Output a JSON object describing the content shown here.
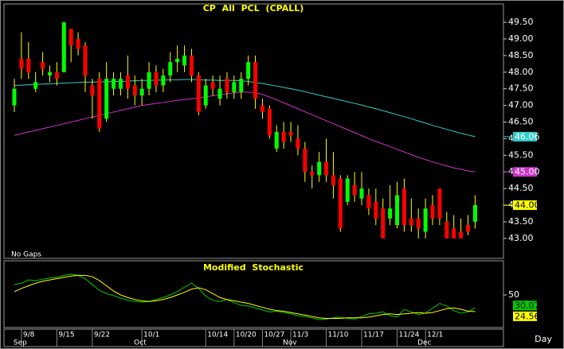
{
  "chart_data": [
    {
      "type": "candlestick",
      "title": "CP All PCL (CPALL)",
      "note": "No Gaps",
      "xlim": [
        -1.46,
        69
      ],
      "xticks": [
        {
          "value": 1,
          "label": "9/8"
        },
        {
          "value": 6,
          "label": "9/15"
        },
        {
          "value": 11,
          "label": "9/22"
        },
        {
          "value": 18,
          "label": "10/1"
        },
        {
          "value": 27,
          "label": "10/14"
        },
        {
          "value": 31,
          "label": "10/20"
        },
        {
          "value": 35,
          "label": "10/27"
        },
        {
          "value": 39,
          "label": "11/3"
        },
        {
          "value": 44,
          "label": "11/10"
        },
        {
          "value": 49,
          "label": "11/17"
        },
        {
          "value": 54,
          "label": "11/24"
        },
        {
          "value": 58,
          "label": "12/1"
        }
      ],
      "months": [
        {
          "value": 1,
          "label": "Sep"
        },
        {
          "value": 18,
          "label": "Oct"
        },
        {
          "value": 39,
          "label": "Nov"
        },
        {
          "value": 58,
          "label": "Dec"
        }
      ],
      "x_label": "Day",
      "ylim": [
        42.4,
        50.05
      ],
      "yticks": [
        {
          "value": 43,
          "label": "43.00"
        },
        {
          "value": 43.5,
          "label": "43.50"
        },
        {
          "value": 44,
          "label": "44.00"
        },
        {
          "value": 44.5,
          "label": "44.50"
        },
        {
          "value": 45,
          "label": "45.00"
        },
        {
          "value": 45.5,
          "label": "45.50"
        },
        {
          "value": 46,
          "label": "46.00"
        },
        {
          "value": 46.5,
          "label": "46.50"
        },
        {
          "value": 47,
          "label": "47.00"
        },
        {
          "value": 47.5,
          "label": "47.50"
        },
        {
          "value": 48,
          "label": "48.00"
        },
        {
          "value": 48.5,
          "label": "48.50"
        },
        {
          "value": 49,
          "label": "49.00"
        },
        {
          "value": 49.5,
          "label": "49.50"
        }
      ],
      "up_color": "#00ff00",
      "down_color": "#ff0000",
      "wick_color": "#ffff00",
      "open": [
        47.0,
        48.4,
        48.4,
        47.5,
        48.3,
        47.9,
        48.0,
        48.0,
        49.3,
        49.0,
        48.8,
        47.6,
        47.8,
        46.6,
        47.5,
        47.5,
        47.9,
        47.6,
        47.3,
        47.5,
        48.0,
        47.6,
        47.9,
        48.3,
        48.2,
        48.5,
        47.9,
        47.0,
        47.7,
        47.2,
        47.8,
        47.4,
        47.4,
        47.8,
        48.3,
        47.0,
        46.9,
        45.7,
        46.2,
        46.2,
        46.0,
        45.7,
        45.0,
        44.9,
        45.3,
        44.9,
        44.8,
        44.1,
        44.6,
        44.2,
        44.3,
        44.1,
        43.9,
        43.6,
        43.4,
        44.5,
        43.6,
        43.6,
        43.2,
        44.0,
        44.5,
        43.5,
        43.3,
        43.2,
        43.4,
        43.5
      ],
      "high": [
        47.8,
        49.2,
        48.9,
        48.0,
        48.6,
        48.2,
        48.3,
        49.5,
        49.3,
        49.2,
        48.9,
        47.8,
        48.0,
        48.3,
        48.0,
        48.0,
        48.5,
        47.9,
        47.8,
        48.3,
        48.2,
        48.1,
        48.6,
        48.8,
        48.8,
        48.7,
        48.0,
        47.8,
        47.9,
        47.9,
        48.0,
        47.9,
        48.0,
        48.5,
        48.5,
        47.2,
        47.0,
        46.4,
        46.5,
        46.5,
        46.4,
        45.9,
        45.2,
        45.6,
        46.0,
        45.6,
        44.9,
        44.9,
        45.0,
        45.0,
        44.5,
        44.5,
        44.2,
        44.6,
        44.7,
        44.8,
        44.2,
        43.9,
        44.2,
        44.3,
        44.5,
        43.8,
        43.7,
        43.6,
        43.7,
        44.3
      ],
      "low": [
        46.8,
        47.8,
        47.8,
        47.4,
        47.9,
        47.7,
        47.6,
        48.0,
        48.3,
        48.5,
        47.4,
        46.6,
        46.2,
        46.5,
        47.3,
        47.3,
        47.2,
        47.0,
        47.0,
        47.3,
        47.4,
        47.4,
        47.7,
        48.0,
        48.0,
        47.7,
        46.7,
        46.9,
        47.3,
        47.0,
        47.2,
        47.2,
        47.2,
        47.6,
        46.9,
        46.6,
        46.0,
        45.6,
        45.7,
        45.9,
        45.5,
        44.7,
        44.5,
        44.7,
        44.7,
        44.2,
        43.2,
        44.0,
        44.1,
        44.0,
        43.7,
        43.4,
        43.0,
        43.4,
        43.3,
        43.2,
        43.2,
        43.0,
        43.0,
        43.4,
        43.4,
        43.0,
        43.0,
        43.0,
        43.1,
        43.3
      ],
      "close": [
        47.5,
        48.1,
        48.0,
        47.7,
        48.1,
        48.0,
        47.8,
        49.5,
        48.8,
        48.7,
        47.9,
        47.3,
        46.3,
        47.8,
        47.8,
        47.8,
        47.5,
        47.3,
        47.5,
        48.0,
        47.6,
        47.9,
        48.3,
        48.4,
        48.5,
        47.9,
        46.8,
        47.6,
        47.5,
        47.5,
        47.4,
        47.7,
        47.8,
        48.3,
        47.2,
        46.8,
        46.1,
        46.2,
        45.9,
        46.1,
        45.7,
        45.0,
        44.9,
        45.3,
        44.9,
        44.6,
        43.3,
        44.8,
        44.3,
        44.5,
        43.9,
        43.6,
        43.0,
        43.9,
        44.3,
        43.4,
        43.4,
        43.3,
        43.9,
        43.6,
        43.6,
        43.0,
        43.0,
        43.0,
        43.2,
        44.0
      ],
      "close_last_label": "44.00",
      "series": [
        {
          "name": "MA1",
          "color": "#33cccc",
          "last_label": "46.06",
          "values": [
            47.6,
            47.61,
            47.62,
            47.63,
            47.64,
            47.65,
            47.66,
            47.67,
            47.68,
            47.69,
            47.7,
            47.7,
            47.71,
            47.71,
            47.72,
            47.72,
            47.73,
            47.74,
            47.75,
            47.75,
            47.76,
            47.76,
            47.77,
            47.77,
            47.78,
            47.78,
            47.77,
            47.76,
            47.76,
            47.75,
            47.75,
            47.75,
            47.74,
            47.72,
            47.69,
            47.66,
            47.62,
            47.58,
            47.54,
            47.5,
            47.46,
            47.41,
            47.36,
            47.31,
            47.26,
            47.21,
            47.16,
            47.11,
            47.06,
            47.01,
            46.95,
            46.9,
            46.84,
            46.78,
            46.72,
            46.66,
            46.6,
            46.53,
            46.47,
            46.4,
            46.34,
            46.28,
            46.22,
            46.16,
            46.11,
            46.06
          ]
        },
        {
          "name": "MA2",
          "color": "#cc33cc",
          "last_label": "45.00",
          "values": [
            46.1,
            46.15,
            46.2,
            46.25,
            46.3,
            46.35,
            46.4,
            46.45,
            46.5,
            46.55,
            46.6,
            46.65,
            46.7,
            46.75,
            46.8,
            46.85,
            46.9,
            46.95,
            47.0,
            47.03,
            47.06,
            47.09,
            47.12,
            47.15,
            47.18,
            47.2,
            47.23,
            47.26,
            47.29,
            47.32,
            47.35,
            47.38,
            47.4,
            47.4,
            47.38,
            47.33,
            47.25,
            47.17,
            47.08,
            46.99,
            46.9,
            46.81,
            46.72,
            46.63,
            46.54,
            46.45,
            46.36,
            46.27,
            46.18,
            46.09,
            46.0,
            45.92,
            45.84,
            45.76,
            45.68,
            45.6,
            45.52,
            45.44,
            45.37,
            45.3,
            45.24,
            45.18,
            45.12,
            45.08,
            45.03,
            45.0
          ]
        }
      ]
    },
    {
      "type": "line",
      "title": "Modified Stochastic",
      "ylim": [
        0,
        100
      ],
      "yticks": [
        50
      ],
      "series": [
        {
          "name": "%K",
          "color": "#00cc00",
          "values": [
            66,
            68,
            73,
            72,
            74,
            76,
            77,
            80,
            82,
            80,
            75,
            66,
            57,
            52,
            49,
            45,
            42,
            40,
            39,
            40,
            43,
            46,
            50,
            55,
            62,
            68,
            60,
            48,
            42,
            40,
            43,
            38,
            34,
            33,
            30,
            27,
            24,
            25,
            23,
            21,
            18,
            17,
            15,
            12,
            13,
            15,
            16,
            14,
            13,
            17,
            21,
            22,
            24,
            18,
            16,
            28,
            24,
            20,
            22,
            30,
            37,
            33,
            26,
            22,
            24,
            30.07
          ]
        },
        {
          "name": "%D",
          "color": "#ffff00",
          "values": [
            55,
            60,
            64,
            68,
            71,
            73,
            75,
            77,
            79,
            80,
            80,
            78,
            72,
            64,
            56,
            50,
            46,
            43,
            41,
            40,
            41,
            43,
            46,
            50,
            54,
            59,
            61,
            58,
            52,
            46,
            43,
            41,
            39,
            37,
            34,
            31,
            28,
            26,
            25,
            23,
            21,
            19,
            17,
            15,
            14,
            14,
            14,
            15,
            15,
            15,
            16,
            18,
            20,
            21,
            20,
            21,
            22,
            23,
            22,
            23,
            26,
            29,
            30,
            28,
            25,
            24.56
          ]
        }
      ]
    }
  ]
}
